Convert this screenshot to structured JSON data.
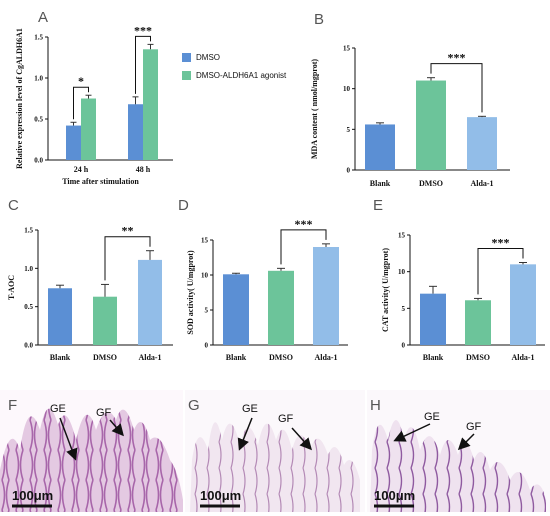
{
  "colors": {
    "blue": "#5b8fd4",
    "green": "#6cc49a",
    "lightblue": "#92bde8",
    "error": "#333333"
  },
  "panels": {
    "A": {
      "letter": "A"
    },
    "B": {
      "letter": "B"
    },
    "C": {
      "letter": "C"
    },
    "D": {
      "letter": "D"
    },
    "E": {
      "letter": "E"
    },
    "F": {
      "letter": "F"
    },
    "G": {
      "letter": "G"
    },
    "H": {
      "letter": "H"
    }
  },
  "chart_data": [
    {
      "id": "A",
      "type": "bar",
      "xlabel": "Time after stimulation",
      "ylabel": "Relative expression level of CgALDH6A1",
      "categories": [
        "24 h",
        "48 h"
      ],
      "ylim": [
        0,
        1.5
      ],
      "yticks": [
        "0.0",
        "0.5",
        "1.0",
        "1.5"
      ],
      "legend_position": "right",
      "series": [
        {
          "name": "DMSO",
          "color": "blue",
          "values": [
            0.42,
            0.68
          ],
          "errors": [
            0.04,
            0.09
          ]
        },
        {
          "name": "DMSO-ALDH6A1 agonist",
          "color": "green",
          "values": [
            0.75,
            1.35
          ],
          "errors": [
            0.04,
            0.06
          ]
        }
      ],
      "significance": [
        {
          "label": "*",
          "from": [
            0,
            0
          ],
          "to": [
            0,
            1
          ]
        },
        {
          "label": "***",
          "from": [
            1,
            0
          ],
          "to": [
            1,
            1
          ]
        }
      ]
    },
    {
      "id": "B",
      "type": "bar",
      "ylabel": "MDA content ( nmol/mgprot)",
      "categories": [
        "Blank",
        "DMSO",
        "Alda-1"
      ],
      "ylim": [
        0,
        15
      ],
      "yticks": [
        "0",
        "5",
        "10",
        "15"
      ],
      "values": [
        5.6,
        11.0,
        6.5
      ],
      "errors": [
        0.2,
        0.35,
        0.1
      ],
      "colors": [
        "blue",
        "green",
        "lightblue"
      ],
      "significance": [
        {
          "label": "***",
          "from": 1,
          "to": 2
        }
      ]
    },
    {
      "id": "C",
      "type": "bar",
      "ylabel": "T-AOC",
      "categories": [
        "Blank",
        "DMSO",
        "Alda-1"
      ],
      "ylim": [
        0,
        1.5
      ],
      "yticks": [
        "0.0",
        "0.5",
        "1.0",
        "1.5"
      ],
      "values": [
        0.74,
        0.63,
        1.11
      ],
      "errors": [
        0.04,
        0.16,
        0.12
      ],
      "colors": [
        "blue",
        "green",
        "lightblue"
      ],
      "significance": [
        {
          "label": "**",
          "from": 1,
          "to": 2
        }
      ]
    },
    {
      "id": "D",
      "type": "bar",
      "ylabel": "SOD activity( U/mgprot)",
      "categories": [
        "Blank",
        "DMSO",
        "Alda-1"
      ],
      "ylim": [
        0,
        15
      ],
      "yticks": [
        "0",
        "5",
        "10",
        "15"
      ],
      "values": [
        10.1,
        10.6,
        14.0
      ],
      "errors": [
        0.15,
        0.35,
        0.45
      ],
      "colors": [
        "blue",
        "green",
        "lightblue"
      ],
      "significance": [
        {
          "label": "***",
          "from": 1,
          "to": 2
        }
      ]
    },
    {
      "id": "E",
      "type": "bar",
      "ylabel": "CAT activity( U/mgprot)",
      "categories": [
        "Blank",
        "DMSO",
        "Alda-1"
      ],
      "ylim": [
        0,
        15
      ],
      "yticks": [
        "0",
        "5",
        "10",
        "15"
      ],
      "values": [
        7.0,
        6.1,
        11.0
      ],
      "errors": [
        1.0,
        0.25,
        0.25
      ],
      "colors": [
        "blue",
        "green",
        "lightblue"
      ],
      "significance": [
        {
          "label": "***",
          "from": 1,
          "to": 2
        }
      ]
    }
  ],
  "micrographs": [
    {
      "id": "F",
      "labels": [
        "GE",
        "GF"
      ],
      "scalebar": "100μm"
    },
    {
      "id": "G",
      "labels": [
        "GE",
        "GF"
      ],
      "scalebar": "100μm"
    },
    {
      "id": "H",
      "labels": [
        "GE",
        "GF"
      ],
      "scalebar": "100μm"
    }
  ]
}
